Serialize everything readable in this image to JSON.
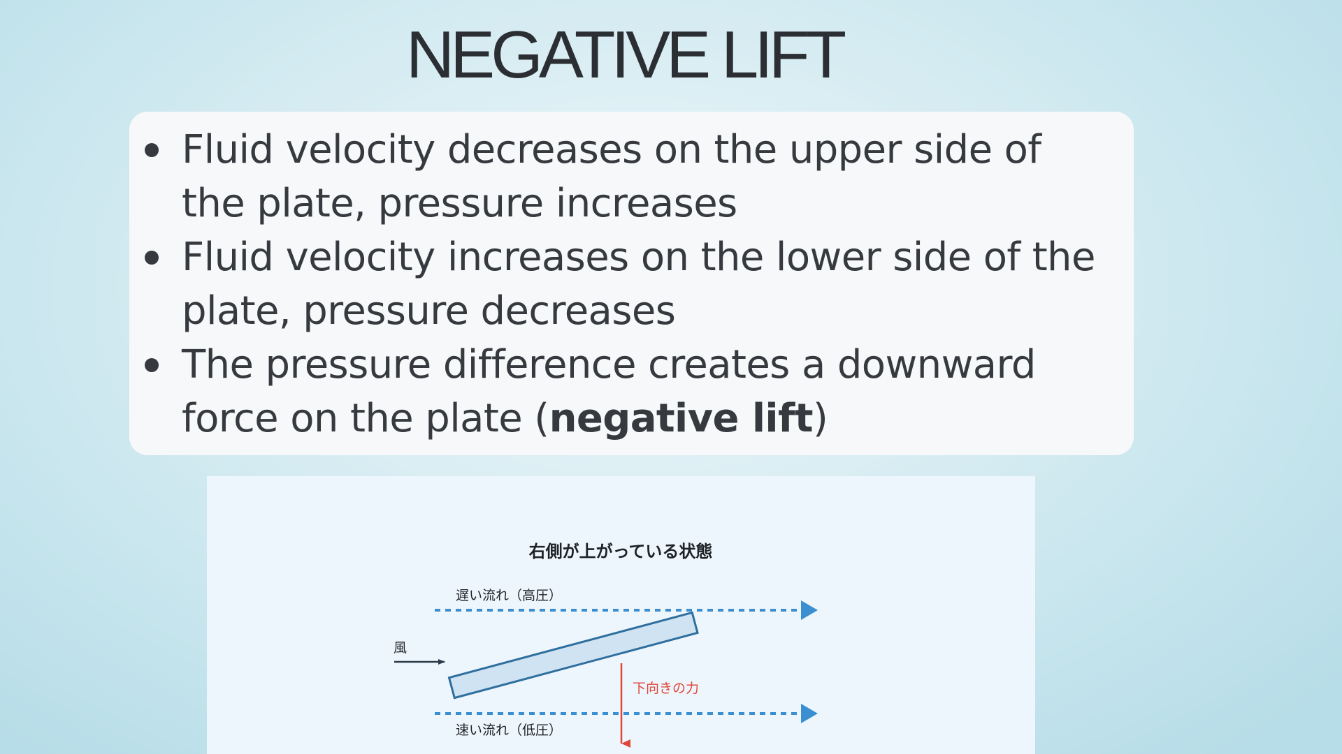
{
  "slide": {
    "title": "NEGATIVE LIFT"
  },
  "bullets": [
    {
      "text": "Fluid velocity decreases on the upper side of the plate, pressure increases"
    },
    {
      "text": "Fluid velocity increases on the lower side of the plate, pressure decreases"
    },
    {
      "text_before": "The pressure difference creates a downward force on the plate (",
      "text_bold": "negative lift",
      "text_after": ")"
    }
  ],
  "diagram": {
    "title": "右側が上がっている状態",
    "upper_flow_label": "遅い流れ（高圧）",
    "lower_flow_label": "速い流れ（低圧）",
    "wind_label": "風",
    "force_label": "下向きの力",
    "colors": {
      "flow": "#3b8fd0",
      "plate_fill": "#cfe3f3",
      "plate_stroke": "#2f6f9e",
      "force": "#e0473a",
      "wind": "#2a3a4a"
    }
  }
}
